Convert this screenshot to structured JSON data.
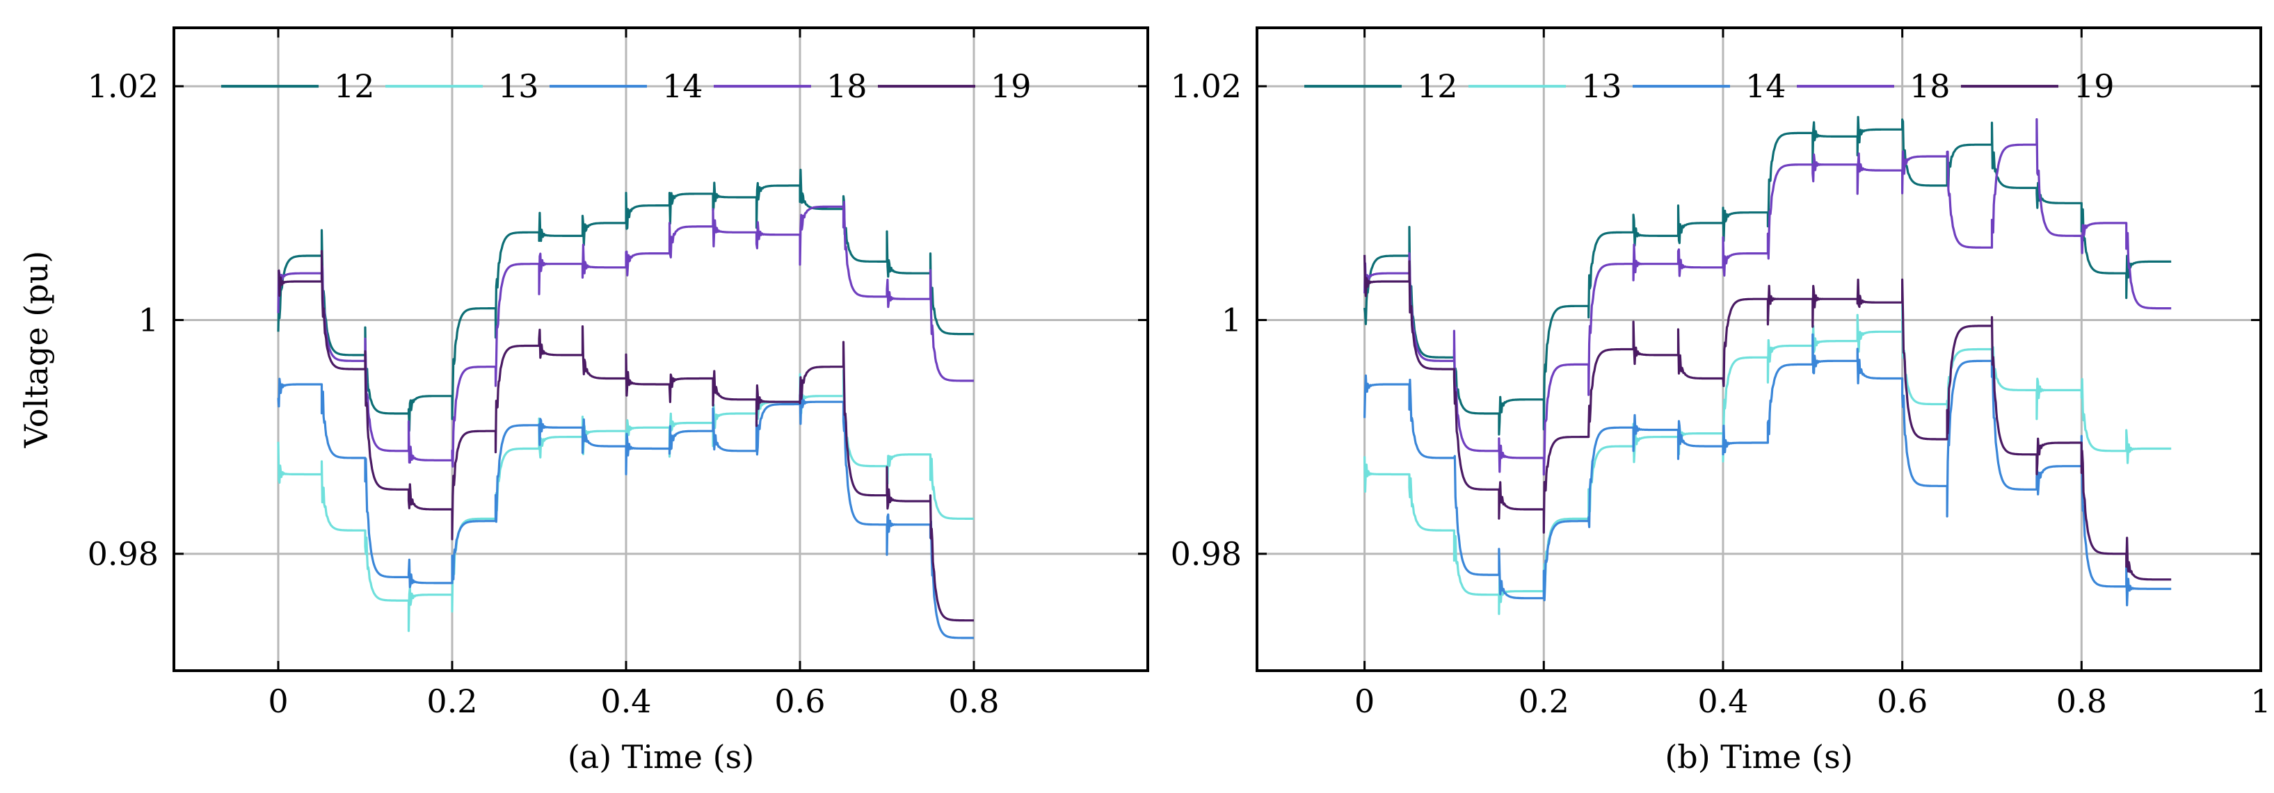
{
  "chart_data": [
    {
      "type": "line",
      "title": "",
      "xlabel": "(a) Time (s)",
      "ylabel": "Voltage (pu)",
      "xlim": [
        -0.12,
        1.0
      ],
      "ylim": [
        0.97,
        1.025
      ],
      "xticks": [
        0,
        0.2,
        0.4,
        0.6,
        0.8
      ],
      "xtick_labels": [
        "0",
        "0.2",
        "0.4",
        "0.6",
        "0.8"
      ],
      "yticks": [
        0.98,
        1.0,
        1.02
      ],
      "ytick_labels": [
        "0.98",
        "1",
        "1.02"
      ],
      "grid": true,
      "legend_position": "top",
      "step_duration": 0.05,
      "series": [
        {
          "name": "12",
          "color": "#0d6e75",
          "start": 0.999,
          "values": [
            1.0055,
            0.997,
            0.992,
            0.9935,
            1.001,
            1.0075,
            1.0072,
            1.0083,
            1.0098,
            1.0108,
            1.0105,
            1.0115,
            1.0095,
            1.005,
            1.004,
            0.9988
          ]
        },
        {
          "name": "13",
          "color": "#6fe0dc",
          "start": 0.987,
          "values": [
            0.9868,
            0.982,
            0.976,
            0.9765,
            0.983,
            0.989,
            0.99,
            0.9905,
            0.9908,
            0.9912,
            0.992,
            0.993,
            0.9935,
            0.9875,
            0.9885,
            0.983
          ]
        },
        {
          "name": "14",
          "color": "#3a86d8",
          "start": 0.994,
          "values": [
            0.9945,
            0.9882,
            0.978,
            0.9775,
            0.9828,
            0.991,
            0.9908,
            0.9892,
            0.989,
            0.9905,
            0.9888,
            0.9928,
            0.993,
            0.9825,
            0.9825,
            0.9728
          ]
        },
        {
          "name": "18",
          "color": "#6f3fbf",
          "start": 1.003,
          "values": [
            1.004,
            0.9965,
            0.9888,
            0.988,
            0.996,
            1.0048,
            1.0048,
            1.0045,
            1.0057,
            1.008,
            1.0075,
            1.0073,
            1.0097,
            1.002,
            1.0018,
            0.9948
          ]
        },
        {
          "name": "19",
          "color": "#4a1a63",
          "start": 1.003,
          "values": [
            1.0033,
            0.9958,
            0.9855,
            0.9838,
            0.9905,
            0.9978,
            0.997,
            0.995,
            0.9945,
            0.995,
            0.9932,
            0.993,
            0.996,
            0.985,
            0.9845,
            0.9743
          ]
        }
      ]
    },
    {
      "type": "line",
      "title": "",
      "xlabel": "(b) Time (s)",
      "ylabel": "",
      "xlim": [
        -0.12,
        1.0
      ],
      "ylim": [
        0.97,
        1.025
      ],
      "xticks": [
        0,
        0.2,
        0.4,
        0.6,
        0.8,
        1.0
      ],
      "xtick_labels": [
        "0",
        "0.2",
        "0.4",
        "0.6",
        "0.8",
        "1"
      ],
      "yticks": [
        0.98,
        1.0,
        1.02
      ],
      "ytick_labels": [
        "0.98",
        "1",
        "1.02"
      ],
      "grid": true,
      "legend_position": "top",
      "step_duration": 0.05,
      "series": [
        {
          "name": "12",
          "color": "#0d6e75",
          "start": 0.999,
          "values": [
            1.0055,
            0.9968,
            0.992,
            0.9932,
            1.0012,
            1.0075,
            1.0072,
            1.0083,
            1.0092,
            1.016,
            1.0157,
            1.0163,
            1.0115,
            1.015,
            1.0113,
            1.01,
            1.004,
            1.005
          ]
        },
        {
          "name": "13",
          "color": "#6fe0dc",
          "start": 0.987,
          "values": [
            0.9868,
            0.982,
            0.9765,
            0.9768,
            0.983,
            0.9892,
            0.99,
            0.9903,
            0.9968,
            0.9978,
            0.9982,
            0.999,
            0.9928,
            0.9975,
            0.994,
            0.994,
            0.9888,
            0.989
          ]
        },
        {
          "name": "14",
          "color": "#3a86d8",
          "start": 0.994,
          "values": [
            0.9945,
            0.9882,
            0.9782,
            0.9762,
            0.9828,
            0.9908,
            0.9906,
            0.9892,
            0.9895,
            0.9962,
            0.9965,
            0.995,
            0.9858,
            0.9965,
            0.9855,
            0.9875,
            0.9772,
            0.977
          ]
        },
        {
          "name": "18",
          "color": "#6f3fbf",
          "start": 1.003,
          "values": [
            1.004,
            0.9965,
            0.9888,
            0.9882,
            0.9962,
            1.0048,
            1.0048,
            1.0045,
            1.0057,
            1.0133,
            1.0133,
            1.0128,
            1.014,
            1.0062,
            1.015,
            1.0072,
            1.0083,
            1.001
          ]
        },
        {
          "name": "19",
          "color": "#4a1a63",
          "start": 1.003,
          "values": [
            1.0033,
            0.9958,
            0.9855,
            0.9838,
            0.99,
            0.9975,
            0.997,
            0.995,
            1.0018,
            1.0018,
            1.0018,
            1.0015,
            0.9898,
            0.9995,
            0.9885,
            0.9895,
            0.98,
            0.9778
          ]
        }
      ]
    }
  ]
}
